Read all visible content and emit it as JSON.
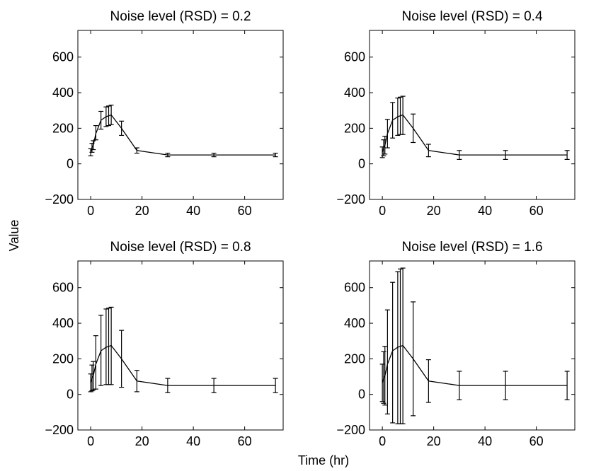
{
  "figure": {
    "xlabel": "Time (hr)",
    "ylabel": "Value"
  },
  "chart_data": [
    {
      "type": "line",
      "title": "Noise level (RSD) = 0.2",
      "xlim": [
        -5,
        75
      ],
      "ylim": [
        -200,
        750
      ],
      "xticks": [
        0,
        20,
        40,
        60
      ],
      "yticks": [
        -200,
        0,
        200,
        400,
        600
      ],
      "grid": false,
      "x": [
        0,
        0.5,
        1,
        2,
        4,
        6,
        7,
        8,
        12,
        18,
        30,
        48,
        72
      ],
      "y": [
        65,
        90,
        105,
        170,
        245,
        265,
        270,
        275,
        200,
        75,
        50,
        50,
        50
      ],
      "err_low": [
        45,
        65,
        80,
        135,
        195,
        210,
        215,
        220,
        160,
        60,
        40,
        40,
        40
      ],
      "err_high": [
        85,
        115,
        130,
        215,
        295,
        320,
        325,
        330,
        240,
        90,
        60,
        60,
        60
      ]
    },
    {
      "type": "line",
      "title": "Noise level (RSD) = 0.4",
      "xlim": [
        -5,
        75
      ],
      "ylim": [
        -200,
        750
      ],
      "xticks": [
        0,
        20,
        40,
        60
      ],
      "yticks": [
        -200,
        0,
        200,
        400,
        600
      ],
      "grid": false,
      "x": [
        0,
        0.5,
        1,
        2,
        4,
        6,
        7,
        8,
        12,
        18,
        30,
        48,
        72
      ],
      "y": [
        65,
        90,
        105,
        170,
        245,
        265,
        270,
        275,
        200,
        75,
        50,
        50,
        50
      ],
      "err_low": [
        35,
        45,
        55,
        90,
        145,
        160,
        165,
        165,
        120,
        40,
        25,
        25,
        25
      ],
      "err_high": [
        95,
        135,
        155,
        250,
        345,
        370,
        375,
        380,
        280,
        110,
        75,
        75,
        75
      ]
    },
    {
      "type": "line",
      "title": "Noise level (RSD) = 0.8",
      "xlim": [
        -5,
        75
      ],
      "ylim": [
        -200,
        750
      ],
      "xticks": [
        0,
        20,
        40,
        60
      ],
      "yticks": [
        -200,
        0,
        200,
        400,
        600
      ],
      "grid": false,
      "x": [
        0,
        0.5,
        1,
        2,
        4,
        6,
        7,
        8,
        12,
        18,
        30,
        48,
        72
      ],
      "y": [
        65,
        90,
        105,
        170,
        245,
        265,
        270,
        275,
        200,
        75,
        50,
        50,
        50
      ],
      "err_low": [
        15,
        20,
        25,
        30,
        50,
        55,
        55,
        55,
        40,
        15,
        10,
        10,
        10
      ],
      "err_high": [
        115,
        165,
        185,
        330,
        445,
        480,
        485,
        490,
        360,
        135,
        90,
        90,
        90
      ]
    },
    {
      "type": "line",
      "title": "Noise level (RSD) = 1.6",
      "xlim": [
        -5,
        75
      ],
      "ylim": [
        -200,
        750
      ],
      "xticks": [
        0,
        20,
        40,
        60
      ],
      "yticks": [
        -200,
        0,
        200,
        400,
        600
      ],
      "grid": false,
      "x": [
        0,
        0.5,
        1,
        2,
        4,
        6,
        7,
        8,
        12,
        18,
        30,
        48,
        72
      ],
      "y": [
        65,
        90,
        105,
        170,
        245,
        265,
        270,
        275,
        200,
        75,
        50,
        50,
        50
      ],
      "err_low": [
        -40,
        -50,
        -60,
        -110,
        -160,
        -165,
        -165,
        -165,
        -120,
        -45,
        -30,
        -30,
        -30
      ],
      "err_high": [
        170,
        240,
        270,
        475,
        630,
        690,
        705,
        710,
        520,
        195,
        130,
        130,
        130
      ]
    }
  ]
}
